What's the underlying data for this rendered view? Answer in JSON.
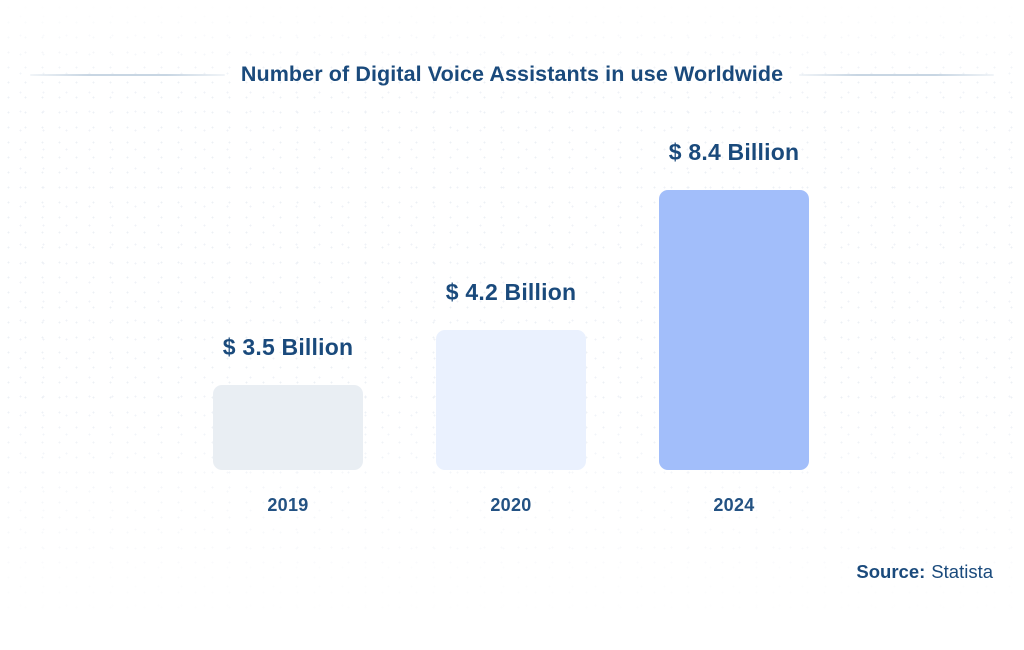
{
  "page": {
    "background_color": "#ffffff",
    "accent_text_color": "#1a4a7c",
    "divider_color": "#c8d6e3"
  },
  "chart_data": {
    "type": "bar",
    "title": "Number of Digital Voice Assistants in use Worldwide",
    "categories": [
      "2019",
      "2020",
      "2024"
    ],
    "values": [
      3.5,
      4.2,
      8.4
    ],
    "value_labels": [
      "$ 3.5 Billion",
      "$ 4.2 Billion",
      "$ 8.4 Billion"
    ],
    "unit": "Billion",
    "bar_colors": [
      "#e9eef3",
      "#eaf1fe",
      "#a2befa"
    ],
    "grid": false,
    "legend": false,
    "axes_shown": false,
    "source": "Statista"
  },
  "footer": {
    "source_label": "Source:",
    "source_value": "Statista"
  }
}
